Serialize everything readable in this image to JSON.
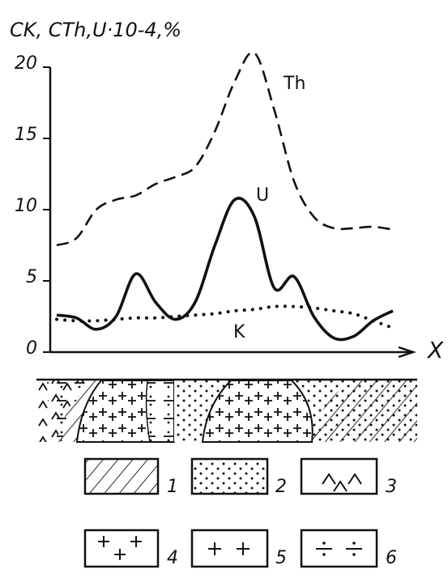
{
  "chart_data": {
    "type": "line",
    "ylabel": "CK,  CTh,U·10-4,%",
    "xlabel": "X",
    "categories": [
      null,
      null,
      null,
      null,
      null,
      null,
      null,
      null,
      null,
      null,
      null,
      null,
      null,
      null,
      null,
      null,
      null,
      null
    ],
    "series": [
      {
        "name": "Th",
        "color": "#111",
        "style": "dashed",
        "values": [
          7.5,
          8,
          10,
          10.7,
          11,
          11.8,
          12.3,
          13,
          15.5,
          19,
          21,
          17,
          12,
          9.5,
          8.7,
          8.7,
          8.8,
          8.6
        ]
      },
      {
        "name": "U",
        "color": "#111",
        "style": "solid",
        "values": [
          2.6,
          2.4,
          1.6,
          2.5,
          5.5,
          3.5,
          2.3,
          3.5,
          7.5,
          10.7,
          9.5,
          4.5,
          5.3,
          2.5,
          1.0,
          1.1,
          2.2,
          2.9
        ]
      },
      {
        "name": "K",
        "color": "#111",
        "style": "dotted",
        "values": [
          2.3,
          2.2,
          2.2,
          2.3,
          2.4,
          2.4,
          2.5,
          2.6,
          2.7,
          2.9,
          3.0,
          3.2,
          3.2,
          3.1,
          2.9,
          2.7,
          2.2,
          1.7
        ]
      }
    ],
    "ylim": [
      0,
      20
    ],
    "yticks": [
      0,
      5,
      10,
      15,
      20
    ],
    "grid": false
  },
  "section_legend": [
    "1",
    "2",
    "3",
    "4",
    "5",
    "6"
  ]
}
